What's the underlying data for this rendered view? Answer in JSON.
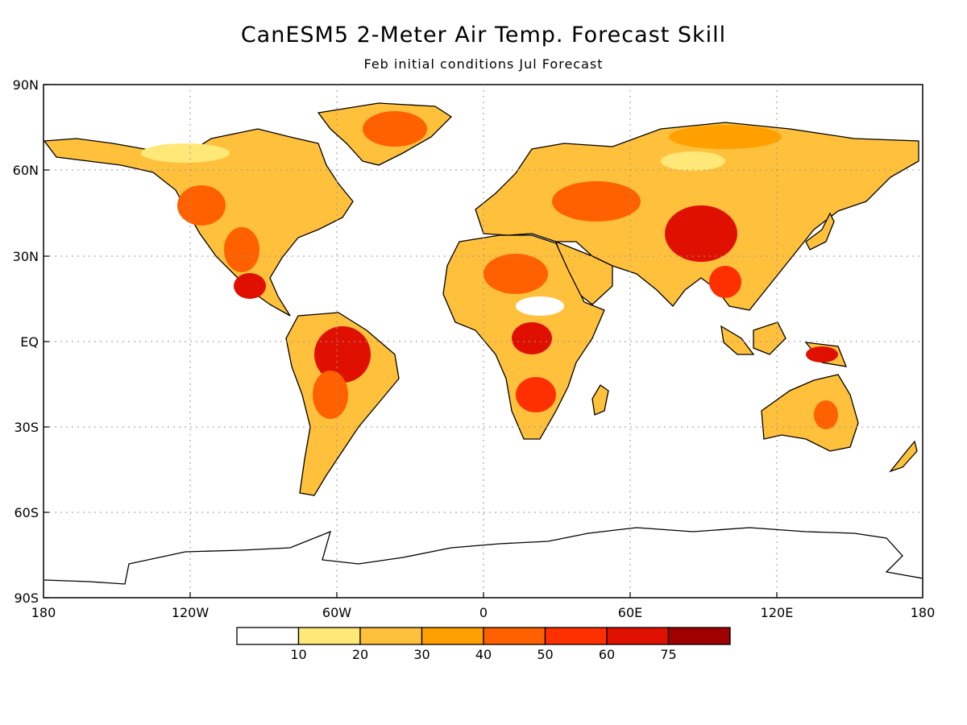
{
  "header": {
    "title": "CanESM5 2-Meter Air Temp. Forecast Skill",
    "subtitle": "Feb initial conditions   Jul Forecast"
  },
  "axes": {
    "lat_labels": [
      "90N",
      "60N",
      "30N",
      "EQ",
      "30S",
      "60S",
      "90S"
    ],
    "lon_labels": [
      "180",
      "120W",
      "60W",
      "0",
      "60E",
      "120E",
      "180"
    ]
  },
  "colorbar": {
    "colors": [
      "#ffffff",
      "#ffe878",
      "#ffc03c",
      "#ffa000",
      "#ff6000",
      "#ff3000",
      "#e01000",
      "#a00000"
    ],
    "labels": [
      "10",
      "20",
      "30",
      "40",
      "50",
      "60",
      "75"
    ]
  }
}
